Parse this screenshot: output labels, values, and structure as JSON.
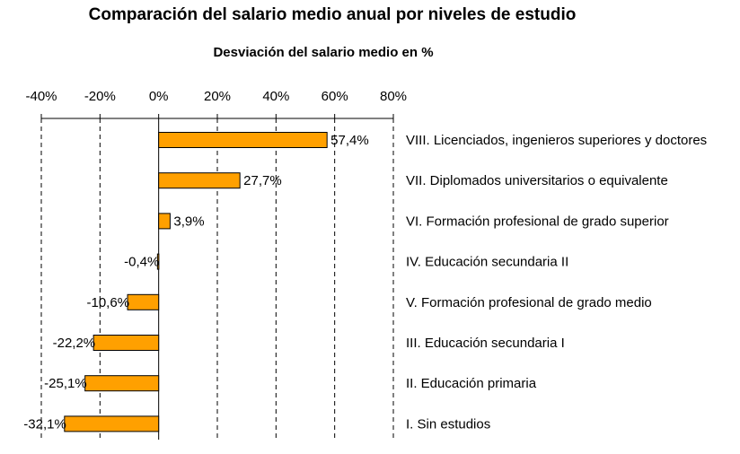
{
  "chart_data": {
    "type": "bar",
    "orientation": "horizontal",
    "title": "Comparación del salario medio anual por niveles de estudio",
    "subtitle": "Desviación del salario medio en %",
    "xlim": [
      -40,
      80
    ],
    "xticks": [
      -40,
      -20,
      0,
      20,
      40,
      60,
      80
    ],
    "tick_labels": [
      "-40%",
      "-20%",
      "0%",
      "20%",
      "40%",
      "60%",
      "80%"
    ],
    "grid": "vertical dashed",
    "categories": [
      "VIII. Licenciados, ingenieros superiores y doctores",
      "VII. Diplomados universitarios o equivalente",
      "VI. Formación profesional de grado superior",
      "IV. Educación secundaria II",
      "V. Formación profesional de grado medio",
      "III. Educación secundaria I",
      "II. Educación primaria",
      "I. Sin estudios"
    ],
    "values": [
      57.4,
      27.7,
      3.9,
      -0.4,
      -10.6,
      -22.2,
      -25.1,
      -32.1
    ],
    "value_labels": [
      "57,4%",
      "27,7%",
      "3,9%",
      "-0,4%",
      "-10,6%",
      "-22,2%",
      "-25,1%",
      "-32,1%"
    ],
    "bar_color": "#FFA000"
  }
}
